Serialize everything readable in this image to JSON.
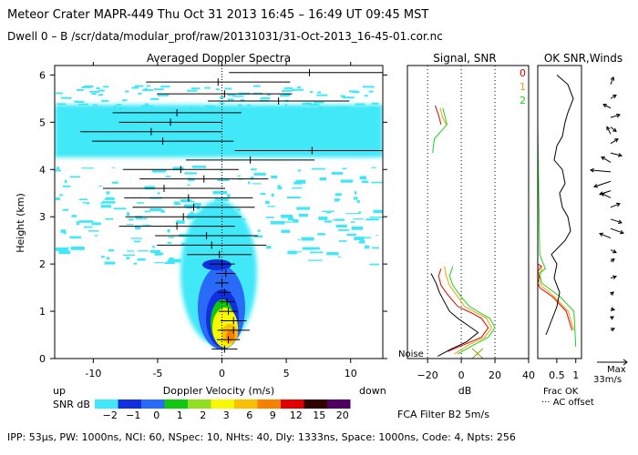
{
  "header": {
    "line1": "Meteor Crater  MAPR-449  Thu Oct 31 2013 16:45 – 16:49 UT 09:45 MST",
    "line2": "Dwell  0 –  B    /scr/data/modular_prof/raw/20131031/31-Oct-2013_16-45-01.cor.nc"
  },
  "footer": {
    "params": "IPP:  53μs,  PW: 1000ns,  NCI:  60,  NSpec: 10,  NHts: 40,  Dly: 1333ns,  Space: 1000ns,  Code: 4,  Npts: 256",
    "filter": "FCA Filter B2   5m/s"
  },
  "colors": {
    "snr_scale": [
      "#3fe8f8",
      "#1030e0",
      "#2a6af8",
      "#10c810",
      "#90e020",
      "#f8f800",
      "#f8c000",
      "#f88000",
      "#e00000",
      "#300000",
      "#500060"
    ],
    "red": "#e00000",
    "orange": "#f0a000",
    "green": "#20d020"
  },
  "chart_data": [
    {
      "type": "heatmap",
      "title": "Averaged Doppler Spectra",
      "xlabel": "Doppler Velocity (m/s)",
      "ylabel": "Height (km)",
      "xlim": [
        -13,
        12.5
      ],
      "ylim": [
        0,
        6.2
      ],
      "xticks": [
        -10,
        -5,
        0,
        5,
        10
      ],
      "yticks": [
        0,
        1,
        2,
        3,
        4,
        5,
        6
      ],
      "label_up": "up",
      "label_down": "down",
      "colorbar": {
        "label": "SNR dB",
        "tick_labels": [
          "−2",
          "−1",
          "0",
          "1",
          "2",
          "3",
          "6",
          "9",
          "12",
          "15",
          "20"
        ]
      },
      "velocity_bars": [
        {
          "h": 6.05,
          "v": 6.8,
          "w": 12.5
        },
        {
          "h": 5.85,
          "v": -0.3,
          "w": 11.2
        },
        {
          "h": 5.6,
          "v": 0.2,
          "w": 10.5
        },
        {
          "h": 5.45,
          "v": 4.4,
          "w": 11.0
        },
        {
          "h": 5.2,
          "v": -3.5,
          "w": 10.0
        },
        {
          "h": 5.0,
          "v": -4.0,
          "w": 8.0
        },
        {
          "h": 4.8,
          "v": -5.5,
          "w": 11.0
        },
        {
          "h": 4.6,
          "v": -4.6,
          "w": 11.0
        },
        {
          "h": 4.4,
          "v": 7.0,
          "w": 12.0
        },
        {
          "h": 4.2,
          "v": 2.2,
          "w": 10.0
        },
        {
          "h": 4.0,
          "v": -3.2,
          "w": 9.0
        },
        {
          "h": 3.8,
          "v": -1.4,
          "w": 10.0
        },
        {
          "h": 3.6,
          "v": -4.5,
          "w": 9.5
        },
        {
          "h": 3.4,
          "v": -2.6,
          "w": 10.0
        },
        {
          "h": 3.2,
          "v": -2.2,
          "w": 9.5
        },
        {
          "h": 3.0,
          "v": -3.0,
          "w": 9.0
        },
        {
          "h": 2.8,
          "v": -3.5,
          "w": 9.0
        },
        {
          "h": 2.6,
          "v": -1.2,
          "w": 8.0
        },
        {
          "h": 2.4,
          "v": -0.8,
          "w": 8.5
        },
        {
          "h": 2.2,
          "v": -0.2,
          "w": 5.0
        },
        {
          "h": 2.0,
          "v": 0.0,
          "w": 2.0
        },
        {
          "h": 1.8,
          "v": 0.3,
          "w": 1.5
        },
        {
          "h": 1.6,
          "v": 0.0,
          "w": 1.0
        },
        {
          "h": 1.4,
          "v": 0.2,
          "w": 1.0
        },
        {
          "h": 1.2,
          "v": 0.4,
          "w": 1.2
        },
        {
          "h": 1.0,
          "v": 0.5,
          "w": 1.5
        },
        {
          "h": 0.8,
          "v": 0.9,
          "w": 2.0
        },
        {
          "h": 0.6,
          "v": 0.9,
          "w": 2.5
        },
        {
          "h": 0.4,
          "v": 0.5,
          "w": 1.8
        },
        {
          "h": 0.2,
          "v": 0.2,
          "w": 2.0
        }
      ]
    },
    {
      "type": "line",
      "title": "Signal, SNR",
      "xlabel": "dB",
      "xlim": [
        -32,
        40
      ],
      "ylim": [
        0,
        6.2
      ],
      "xticks": [
        -20,
        0,
        20,
        40
      ],
      "noise_label": "Noise",
      "series": [
        {
          "name": "0",
          "color": "#e00000",
          "segments": [
            [
              [
                -15.5,
                5.35
              ],
              [
                -13.5,
                5.15
              ],
              [
                -12,
                4.95
              ]
            ],
            [
              [
                -12,
                1.9
              ],
              [
                -13.5,
                1.75
              ],
              [
                -12,
                1.55
              ],
              [
                -8,
                1.35
              ],
              [
                -2,
                1.1
              ],
              [
                7,
                0.95
              ],
              [
                12,
                0.85
              ],
              [
                16,
                0.65
              ],
              [
                12,
                0.45
              ],
              [
                2,
                0.3
              ],
              [
                -8,
                0.15
              ]
            ]
          ]
        },
        {
          "name": "1",
          "color": "#f0a000",
          "segments": [
            [
              [
                -12.5,
                5.3
              ],
              [
                -11,
                5.1
              ],
              [
                -9,
                4.95
              ]
            ],
            [
              [
                -10,
                1.95
              ],
              [
                -9,
                1.75
              ],
              [
                -7,
                1.55
              ],
              [
                -3,
                1.35
              ],
              [
                2,
                1.1
              ],
              [
                10,
                0.95
              ],
              [
                15,
                0.85
              ],
              [
                18,
                0.65
              ],
              [
                14,
                0.45
              ],
              [
                5,
                0.3
              ],
              [
                -4,
                0.1
              ]
            ]
          ]
        },
        {
          "name": "2",
          "color": "#20d020",
          "segments": [
            [
              [
                -11,
                5.3
              ],
              [
                -9.5,
                5.1
              ],
              [
                -8.5,
                4.95
              ],
              [
                -16,
                4.65
              ],
              [
                -17,
                4.35
              ]
            ],
            [
              [
                -5,
                1.95
              ],
              [
                -7,
                1.75
              ],
              [
                -5,
                1.55
              ],
              [
                0,
                1.3
              ],
              [
                5,
                1.1
              ],
              [
                12,
                0.95
              ],
              [
                17,
                0.85
              ],
              [
                20,
                0.65
              ],
              [
                16,
                0.45
              ],
              [
                8,
                0.3
              ],
              [
                -2,
                0.1
              ]
            ]
          ]
        },
        {
          "name": "noise",
          "color": "#000000",
          "segments": [
            [
              [
                -18,
                1.8
              ],
              [
                -15,
                1.6
              ],
              [
                -13,
                1.4
              ],
              [
                -10,
                1.2
              ],
              [
                -7,
                1.0
              ],
              [
                -2,
                0.85
              ],
              [
                4,
                0.7
              ],
              [
                10,
                0.55
              ],
              [
                3,
                0.35
              ],
              [
                -6,
                0.2
              ],
              [
                -14,
                0.05
              ]
            ]
          ]
        }
      ]
    },
    {
      "type": "line",
      "title": "OK SNR,Winds",
      "xlabel": "Frac OK",
      "legend_extra": "··· AC offset",
      "xlim": [
        0,
        1.15
      ],
      "ylim": [
        0,
        6.2
      ],
      "xtick_labels": [
        "0.5",
        "1"
      ],
      "xtick_values": [
        0.5,
        1.0
      ],
      "wind_max_label": "Max",
      "wind_max_value": "33m/s",
      "frac_ok": [
        {
          "name": "red",
          "color": "#e00000",
          "points": [
            [
              0.0,
              2.0
            ],
            [
              0.1,
              1.95
            ],
            [
              0.0,
              1.85
            ],
            [
              0.05,
              1.7
            ],
            [
              0.0,
              1.6
            ],
            [
              0.05,
              1.5
            ],
            [
              0.4,
              1.3
            ],
            [
              0.75,
              1.0
            ],
            [
              0.9,
              0.6
            ]
          ]
        },
        {
          "name": "orange",
          "color": "#f0a000",
          "points": [
            [
              0.0,
              1.95
            ],
            [
              0.12,
              1.9
            ],
            [
              0.0,
              1.75
            ],
            [
              0.08,
              1.55
            ],
            [
              0.45,
              1.3
            ],
            [
              0.8,
              1.0
            ],
            [
              0.95,
              0.6
            ]
          ]
        },
        {
          "name": "green",
          "color": "#20d020",
          "points": [
            [
              0.0,
              6.2
            ],
            [
              0.0,
              4.9
            ],
            [
              0.05,
              2.2
            ],
            [
              0.2,
              1.9
            ],
            [
              0.05,
              1.8
            ],
            [
              0.1,
              1.6
            ],
            [
              0.6,
              1.3
            ],
            [
              0.95,
              1.0
            ],
            [
              1.0,
              0.25
            ]
          ]
        }
      ],
      "offset_line": [
        [
          0.35,
          6.0
        ],
        [
          0.55,
          5.8
        ],
        [
          0.65,
          5.5
        ],
        [
          0.55,
          5.2
        ],
        [
          0.5,
          5.0
        ],
        [
          0.45,
          4.7
        ],
        [
          0.35,
          4.5
        ],
        [
          0.3,
          4.2
        ],
        [
          0.45,
          4.0
        ],
        [
          0.5,
          3.7
        ],
        [
          0.4,
          3.5
        ],
        [
          0.45,
          3.2
        ],
        [
          0.55,
          3.0
        ],
        [
          0.6,
          2.7
        ],
        [
          0.5,
          2.5
        ],
        [
          0.25,
          2.2
        ],
        [
          0.35,
          2.0
        ],
        [
          0.3,
          1.7
        ],
        [
          0.4,
          1.4
        ],
        [
          0.35,
          1.1
        ],
        [
          0.25,
          0.8
        ],
        [
          0.15,
          0.5
        ]
      ],
      "wind_arrows": [
        {
          "h": 5.8,
          "dx": 3,
          "dy": -8
        },
        {
          "h": 5.5,
          "dx": 6,
          "dy": -4
        },
        {
          "h": 5.3,
          "dx": -8,
          "dy": -4
        },
        {
          "h": 5.1,
          "dx": 10,
          "dy": -3
        },
        {
          "h": 4.9,
          "dx": 6,
          "dy": 5
        },
        {
          "h": 4.75,
          "dx": -4,
          "dy": -8
        },
        {
          "h": 4.55,
          "dx": 8,
          "dy": -5
        },
        {
          "h": 4.35,
          "dx": 12,
          "dy": 3
        },
        {
          "h": 4.15,
          "dx": -10,
          "dy": -6
        },
        {
          "h": 3.95,
          "dx": -22,
          "dy": -2
        },
        {
          "h": 3.75,
          "dx": -18,
          "dy": 6
        },
        {
          "h": 3.55,
          "dx": -12,
          "dy": 4
        },
        {
          "h": 3.4,
          "dx": -10,
          "dy": -5
        },
        {
          "h": 3.2,
          "dx": 10,
          "dy": -4
        },
        {
          "h": 2.95,
          "dx": 12,
          "dy": 4
        },
        {
          "h": 2.75,
          "dx": 14,
          "dy": 5
        },
        {
          "h": 2.55,
          "dx": -12,
          "dy": -5
        },
        {
          "h": 2.3,
          "dx": 6,
          "dy": 3
        },
        {
          "h": 2.05,
          "dx": 4,
          "dy": -3
        },
        {
          "h": 1.7,
          "dx": 6,
          "dy": -2
        },
        {
          "h": 1.35,
          "dx": 3,
          "dy": -3
        },
        {
          "h": 1.05,
          "dx": 4,
          "dy": 1
        },
        {
          "h": 0.85,
          "dx": 3,
          "dy": -2
        },
        {
          "h": 0.6,
          "dx": 4,
          "dy": -2
        }
      ]
    }
  ]
}
